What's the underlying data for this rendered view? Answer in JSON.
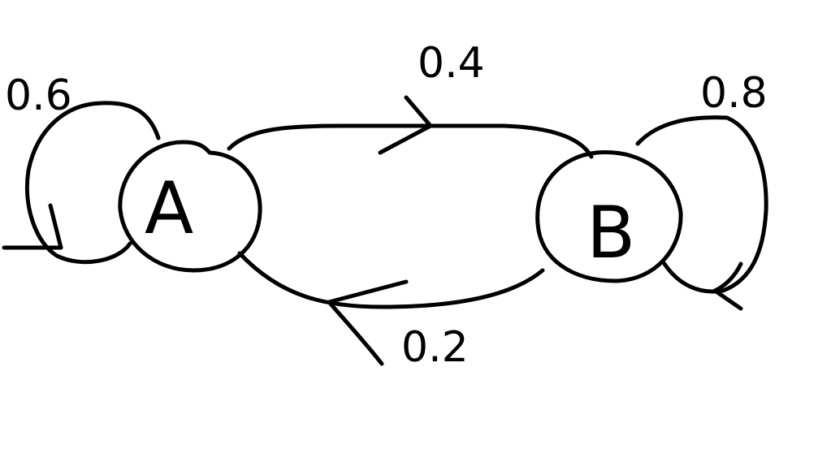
{
  "colors": {
    "background": "#ffffff",
    "ink": "#000000"
  },
  "diagram": {
    "type": "state-transition-diagram",
    "nodes": [
      {
        "id": "A",
        "label": "A"
      },
      {
        "id": "B",
        "label": "B"
      }
    ],
    "edges": [
      {
        "from": "A",
        "to": "A",
        "kind": "self-loop",
        "label": "0.6"
      },
      {
        "from": "A",
        "to": "B",
        "kind": "transition",
        "label": "0.4"
      },
      {
        "from": "B",
        "to": "A",
        "kind": "transition",
        "label": "0.2"
      },
      {
        "from": "B",
        "to": "B",
        "kind": "self-loop",
        "label": "0.8"
      }
    ],
    "initial_state": "A"
  }
}
